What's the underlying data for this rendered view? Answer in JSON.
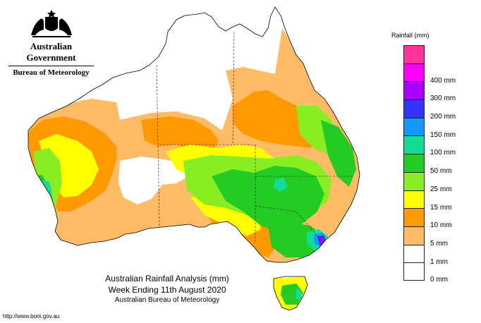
{
  "header": {
    "government": "Australian Government",
    "bureau": "Bureau of Meteorology"
  },
  "title": {
    "line1": "Australian Rainfall Analysis (mm)",
    "line2": "Week Ending 11th August 2020",
    "line3": "Australian Bureau of Meteorology"
  },
  "footer": {
    "url": "http://www.bom.gov.au"
  },
  "legend": {
    "title": "Rainfall (mm)",
    "items": [
      {
        "label": "",
        "color": "#ff3399"
      },
      {
        "label": "400 mm",
        "color": "#ff00ff"
      },
      {
        "label": "300 mm",
        "color": "#aa00ff"
      },
      {
        "label": "200 mm",
        "color": "#3333ff"
      },
      {
        "label": "150 mm",
        "color": "#1199ff"
      },
      {
        "label": "100 mm",
        "color": "#11dd99"
      },
      {
        "label": "50 mm",
        "color": "#22cc22"
      },
      {
        "label": "25 mm",
        "color": "#88ee22"
      },
      {
        "label": "15 mm",
        "color": "#ffff00"
      },
      {
        "label": "10 mm",
        "color": "#ff9900"
      },
      {
        "label": "5 mm",
        "color": "#ffbb66"
      },
      {
        "label": "1 mm",
        "color": "#ffffff"
      },
      {
        "label": "0 mm",
        "color": "#ffffff"
      }
    ]
  },
  "map_colors": {
    "none": "#ffffff",
    "r1_5": "#ffbb66",
    "r5_10": "#ff9900",
    "r10_15": "#ffff00",
    "r15_25": "#88ee22",
    "r25_50": "#22cc22",
    "r50_100": "#11dd99",
    "r100_150": "#1199ff",
    "r150_200": "#3333ff",
    "r200_300": "#aa00ff"
  }
}
